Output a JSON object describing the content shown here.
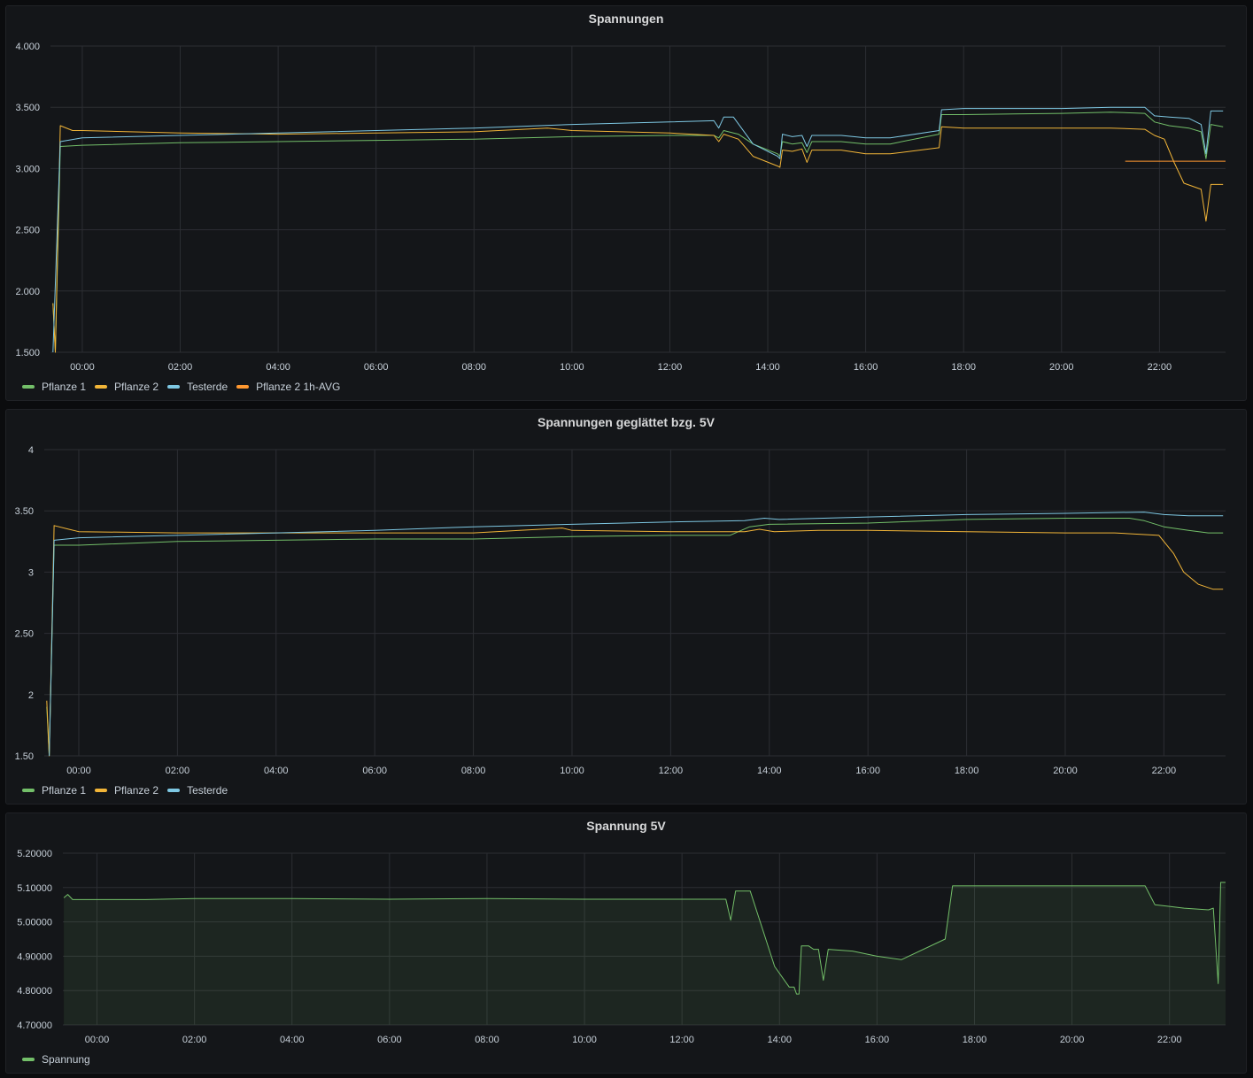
{
  "colors": {
    "pflanze1": "#73bf69",
    "pflanze2": "#fade2a",
    "testerde": "#8ab8ff",
    "avg": "#ff9830",
    "spannung": "#73bf69"
  },
  "x_ticks": [
    "00:00",
    "02:00",
    "04:00",
    "06:00",
    "08:00",
    "10:00",
    "12:00",
    "14:00",
    "16:00",
    "18:00",
    "20:00",
    "22:00"
  ],
  "panels": [
    {
      "title": "Spannungen",
      "legend": [
        {
          "label": "Pflanze 1",
          "color": "#73bf69"
        },
        {
          "label": "Pflanze 2",
          "color": "#f2b538"
        },
        {
          "label": "Testerde",
          "color": "#7ec8e3"
        },
        {
          "label": "Pflanze 2 1h-AVG",
          "color": "#ff9830"
        }
      ]
    },
    {
      "title": "Spannungen geglättet bzg. 5V",
      "legend": [
        {
          "label": "Pflanze 1",
          "color": "#73bf69"
        },
        {
          "label": "Pflanze 2",
          "color": "#f2b538"
        },
        {
          "label": "Testerde",
          "color": "#7ec8e3"
        }
      ]
    },
    {
      "title": "Spannung 5V",
      "legend": [
        {
          "label": "Spannung",
          "color": "#73bf69"
        }
      ]
    }
  ],
  "chart_data": [
    {
      "type": "line",
      "title": "Spannungen",
      "xlabel": "",
      "ylabel": "",
      "x_unit": "hours since 00:00",
      "xlim": [
        -0.65,
        23.35
      ],
      "ylim": [
        1.5,
        4.0
      ],
      "y_ticks": [
        "1.500",
        "2.000",
        "2.500",
        "3.000",
        "3.500",
        "4.000"
      ],
      "y_tick_values": [
        1.5,
        2.0,
        2.5,
        3.0,
        3.5,
        4.0
      ],
      "grid": true,
      "legend_position": "bottom-left",
      "series": [
        {
          "name": "Pflanze 1",
          "color": "#73bf69",
          "points": [
            [
              -0.6,
              1.9
            ],
            [
              -0.55,
              1.5
            ],
            [
              -0.45,
              3.18
            ],
            [
              0,
              3.19
            ],
            [
              2,
              3.21
            ],
            [
              4,
              3.22
            ],
            [
              6,
              3.23
            ],
            [
              8,
              3.24
            ],
            [
              10,
              3.26
            ],
            [
              12,
              3.27
            ],
            [
              12.9,
              3.27
            ],
            [
              13,
              3.25
            ],
            [
              13.1,
              3.31
            ],
            [
              13.4,
              3.28
            ],
            [
              13.7,
              3.2
            ],
            [
              14.2,
              3.12
            ],
            [
              14.25,
              3.1
            ],
            [
              14.3,
              3.22
            ],
            [
              14.5,
              3.2
            ],
            [
              14.7,
              3.21
            ],
            [
              14.8,
              3.13
            ],
            [
              14.9,
              3.22
            ],
            [
              15.5,
              3.22
            ],
            [
              16,
              3.2
            ],
            [
              16.5,
              3.2
            ],
            [
              17.5,
              3.28
            ],
            [
              17.55,
              3.44
            ],
            [
              18,
              3.44
            ],
            [
              20,
              3.45
            ],
            [
              21,
              3.46
            ],
            [
              21.7,
              3.45
            ],
            [
              21.9,
              3.38
            ],
            [
              22.2,
              3.35
            ],
            [
              22.6,
              3.33
            ],
            [
              22.85,
              3.3
            ],
            [
              22.95,
              3.08
            ],
            [
              23.05,
              3.36
            ],
            [
              23.3,
              3.34
            ]
          ]
        },
        {
          "name": "Pflanze 2",
          "color": "#f2b538",
          "points": [
            [
              -0.6,
              1.9
            ],
            [
              -0.55,
              1.5
            ],
            [
              -0.45,
              3.35
            ],
            [
              -0.2,
              3.31
            ],
            [
              0,
              3.31
            ],
            [
              2,
              3.29
            ],
            [
              4,
              3.28
            ],
            [
              6,
              3.29
            ],
            [
              8,
              3.3
            ],
            [
              9.5,
              3.33
            ],
            [
              10,
              3.31
            ],
            [
              12,
              3.29
            ],
            [
              12.9,
              3.27
            ],
            [
              13,
              3.22
            ],
            [
              13.1,
              3.28
            ],
            [
              13.4,
              3.24
            ],
            [
              13.7,
              3.1
            ],
            [
              14.2,
              3.02
            ],
            [
              14.25,
              3.01
            ],
            [
              14.3,
              3.15
            ],
            [
              14.5,
              3.14
            ],
            [
              14.7,
              3.16
            ],
            [
              14.8,
              3.05
            ],
            [
              14.9,
              3.15
            ],
            [
              15.5,
              3.15
            ],
            [
              16,
              3.12
            ],
            [
              16.5,
              3.12
            ],
            [
              17.5,
              3.17
            ],
            [
              17.55,
              3.34
            ],
            [
              18,
              3.33
            ],
            [
              20,
              3.33
            ],
            [
              21,
              3.33
            ],
            [
              21.7,
              3.32
            ],
            [
              21.9,
              3.27
            ],
            [
              22.1,
              3.24
            ],
            [
              22.3,
              3.05
            ],
            [
              22.5,
              2.88
            ],
            [
              22.85,
              2.83
            ],
            [
              22.95,
              2.57
            ],
            [
              23.05,
              2.87
            ],
            [
              23.3,
              2.87
            ]
          ]
        },
        {
          "name": "Testerde",
          "color": "#7ec8e3",
          "points": [
            [
              -0.6,
              1.5
            ],
            [
              -0.45,
              3.22
            ],
            [
              0,
              3.25
            ],
            [
              2,
              3.27
            ],
            [
              4,
              3.29
            ],
            [
              6,
              3.31
            ],
            [
              8,
              3.33
            ],
            [
              10,
              3.36
            ],
            [
              12,
              3.38
            ],
            [
              12.9,
              3.39
            ],
            [
              13,
              3.33
            ],
            [
              13.1,
              3.42
            ],
            [
              13.3,
              3.42
            ],
            [
              13.7,
              3.2
            ],
            [
              14.2,
              3.1
            ],
            [
              14.25,
              3.08
            ],
            [
              14.3,
              3.28
            ],
            [
              14.5,
              3.26
            ],
            [
              14.7,
              3.27
            ],
            [
              14.8,
              3.18
            ],
            [
              14.9,
              3.27
            ],
            [
              15.5,
              3.27
            ],
            [
              16,
              3.25
            ],
            [
              16.5,
              3.25
            ],
            [
              17.5,
              3.31
            ],
            [
              17.55,
              3.48
            ],
            [
              18,
              3.49
            ],
            [
              20,
              3.49
            ],
            [
              21,
              3.5
            ],
            [
              21.7,
              3.5
            ],
            [
              21.9,
              3.43
            ],
            [
              22.2,
              3.42
            ],
            [
              22.6,
              3.41
            ],
            [
              22.85,
              3.36
            ],
            [
              22.95,
              3.12
            ],
            [
              23.05,
              3.47
            ],
            [
              23.3,
              3.47
            ]
          ]
        },
        {
          "name": "Pflanze 2 1h-AVG",
          "color": "#ff9830",
          "points": [
            [
              21.3,
              3.06
            ],
            [
              23.35,
              3.06
            ]
          ]
        }
      ]
    },
    {
      "type": "line",
      "title": "Spannungen geglättet bzg. 5V",
      "xlabel": "",
      "ylabel": "",
      "x_unit": "hours since 00:00",
      "xlim": [
        -0.7,
        23.25
      ],
      "ylim": [
        1.5,
        4.0
      ],
      "y_ticks": [
        "1.50",
        "2",
        "2.50",
        "3",
        "3.50",
        "4"
      ],
      "y_tick_values": [
        1.5,
        2.0,
        2.5,
        3.0,
        3.5,
        4.0
      ],
      "grid": true,
      "legend_position": "bottom-left",
      "series": [
        {
          "name": "Pflanze 1",
          "color": "#73bf69",
          "points": [
            [
              -0.65,
              1.9
            ],
            [
              -0.6,
              1.5
            ],
            [
              -0.5,
              3.22
            ],
            [
              0,
              3.22
            ],
            [
              2,
              3.25
            ],
            [
              4,
              3.26
            ],
            [
              6,
              3.27
            ],
            [
              8,
              3.27
            ],
            [
              10,
              3.29
            ],
            [
              12,
              3.3
            ],
            [
              13.2,
              3.3
            ],
            [
              13.6,
              3.37
            ],
            [
              14,
              3.39
            ],
            [
              16,
              3.4
            ],
            [
              18,
              3.43
            ],
            [
              20,
              3.44
            ],
            [
              21.3,
              3.44
            ],
            [
              21.6,
              3.42
            ],
            [
              22,
              3.37
            ],
            [
              22.5,
              3.34
            ],
            [
              22.9,
              3.32
            ],
            [
              23.2,
              3.32
            ]
          ]
        },
        {
          "name": "Pflanze 2",
          "color": "#f2b538",
          "points": [
            [
              -0.65,
              1.95
            ],
            [
              -0.6,
              1.5
            ],
            [
              -0.5,
              3.38
            ],
            [
              -0.2,
              3.35
            ],
            [
              0,
              3.33
            ],
            [
              2,
              3.32
            ],
            [
              4,
              3.32
            ],
            [
              6,
              3.32
            ],
            [
              8,
              3.32
            ],
            [
              9.8,
              3.36
            ],
            [
              10,
              3.34
            ],
            [
              12,
              3.33
            ],
            [
              13.5,
              3.33
            ],
            [
              13.8,
              3.35
            ],
            [
              14.1,
              3.33
            ],
            [
              15,
              3.34
            ],
            [
              16,
              3.34
            ],
            [
              18,
              3.33
            ],
            [
              20,
              3.32
            ],
            [
              21,
              3.32
            ],
            [
              21.9,
              3.3
            ],
            [
              22.2,
              3.15
            ],
            [
              22.4,
              3.0
            ],
            [
              22.7,
              2.9
            ],
            [
              23,
              2.86
            ],
            [
              23.2,
              2.86
            ]
          ]
        },
        {
          "name": "Testerde",
          "color": "#7ec8e3",
          "points": [
            [
              -0.6,
              1.5
            ],
            [
              -0.5,
              3.26
            ],
            [
              0,
              3.28
            ],
            [
              2,
              3.3
            ],
            [
              4,
              3.32
            ],
            [
              6,
              3.34
            ],
            [
              8,
              3.37
            ],
            [
              10,
              3.39
            ],
            [
              12,
              3.41
            ],
            [
              13.5,
              3.42
            ],
            [
              13.9,
              3.44
            ],
            [
              14.2,
              3.43
            ],
            [
              16,
              3.45
            ],
            [
              18,
              3.47
            ],
            [
              20,
              3.48
            ],
            [
              21.6,
              3.49
            ],
            [
              22,
              3.47
            ],
            [
              22.5,
              3.46
            ],
            [
              23.2,
              3.46
            ]
          ]
        }
      ]
    },
    {
      "type": "area",
      "title": "Spannung 5V",
      "xlabel": "",
      "ylabel": "",
      "x_unit": "hours since 00:00",
      "xlim": [
        -0.7,
        23.15
      ],
      "ylim": [
        4.7,
        5.2
      ],
      "y_ticks": [
        "4.70000",
        "4.80000",
        "4.90000",
        "5.00000",
        "5.10000",
        "5.20000"
      ],
      "y_tick_values": [
        4.7,
        4.8,
        4.9,
        5.0,
        5.1,
        5.2
      ],
      "grid": true,
      "legend_position": "bottom-left",
      "series": [
        {
          "name": "Spannung",
          "color": "#73bf69",
          "points": [
            [
              -0.68,
              5.07
            ],
            [
              -0.6,
              5.08
            ],
            [
              -0.5,
              5.065
            ],
            [
              0,
              5.065
            ],
            [
              1,
              5.065
            ],
            [
              2,
              5.068
            ],
            [
              4,
              5.068
            ],
            [
              6,
              5.066
            ],
            [
              8,
              5.068
            ],
            [
              10,
              5.066
            ],
            [
              12,
              5.066
            ],
            [
              12.9,
              5.066
            ],
            [
              13,
              5.005
            ],
            [
              13.1,
              5.09
            ],
            [
              13.4,
              5.09
            ],
            [
              13.9,
              4.87
            ],
            [
              14.2,
              4.81
            ],
            [
              14.3,
              4.81
            ],
            [
              14.35,
              4.79
            ],
            [
              14.4,
              4.79
            ],
            [
              14.45,
              4.93
            ],
            [
              14.6,
              4.93
            ],
            [
              14.7,
              4.92
            ],
            [
              14.8,
              4.92
            ],
            [
              14.9,
              4.83
            ],
            [
              15,
              4.92
            ],
            [
              15.5,
              4.915
            ],
            [
              16,
              4.9
            ],
            [
              16.5,
              4.89
            ],
            [
              17.4,
              4.95
            ],
            [
              17.55,
              5.105
            ],
            [
              18,
              5.105
            ],
            [
              19,
              5.105
            ],
            [
              20,
              5.105
            ],
            [
              21.5,
              5.105
            ],
            [
              21.7,
              5.05
            ],
            [
              22,
              5.045
            ],
            [
              22.3,
              5.04
            ],
            [
              22.8,
              5.035
            ],
            [
              22.9,
              5.04
            ],
            [
              23.0,
              4.82
            ],
            [
              23.05,
              5.115
            ],
            [
              23.15,
              5.115
            ]
          ]
        }
      ]
    }
  ]
}
